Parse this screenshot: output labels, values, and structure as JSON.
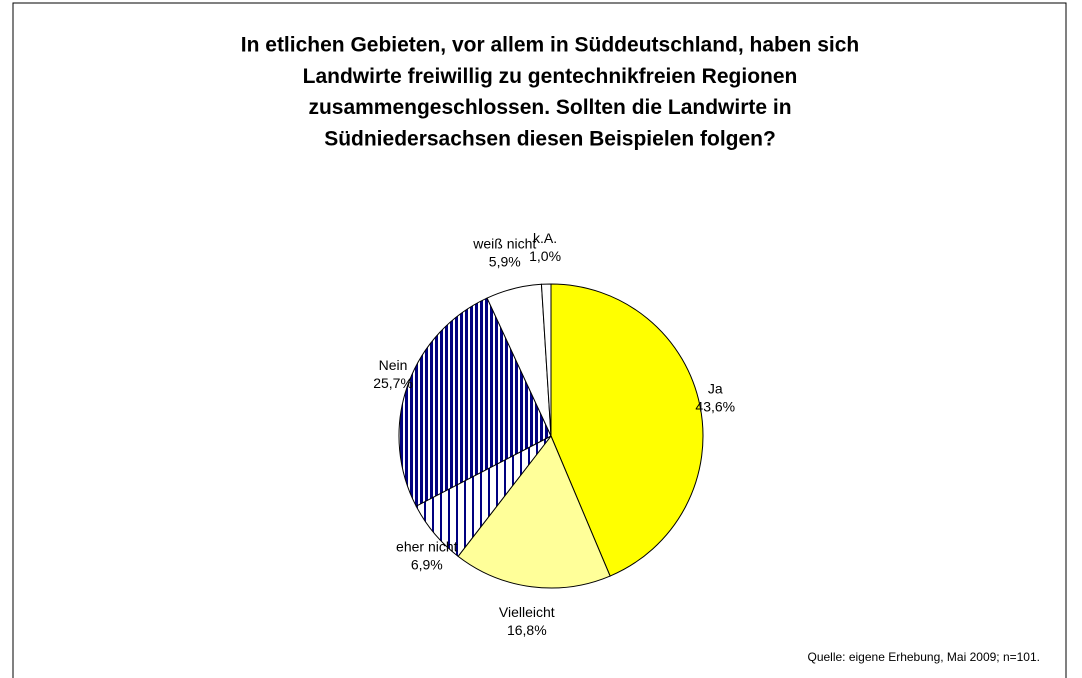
{
  "chart_data": {
    "type": "pie",
    "title": [
      "In etlichen Gebieten, vor allem in Süddeutschland, haben sich",
      "Landwirte freiwillig zu gentechnikfreien Regionen",
      "zusammengeschlossen. Sollten die Landwirte in",
      "Südniedersachsen diesen Beispielen folgen?"
    ],
    "categories": [
      "Ja",
      "Vielleicht",
      "eher nicht",
      "Nein",
      "weiß nicht",
      "k.A."
    ],
    "values": [
      43.6,
      16.8,
      6.9,
      25.7,
      5.9,
      1.0
    ],
    "value_labels": [
      "43,6%",
      "16,8%",
      "6,9%",
      "25,7%",
      "5,9%",
      "1,0%"
    ],
    "colors": [
      "#ffff00",
      "#ffff99",
      "#000080",
      "#000080",
      "#ffffff",
      "#ffffff"
    ],
    "hatch": [
      null,
      null,
      "sparse-vertical",
      "dense-vertical",
      null,
      null
    ],
    "source": "Quelle: eigene Erhebung, Mai 2009; n=101."
  }
}
